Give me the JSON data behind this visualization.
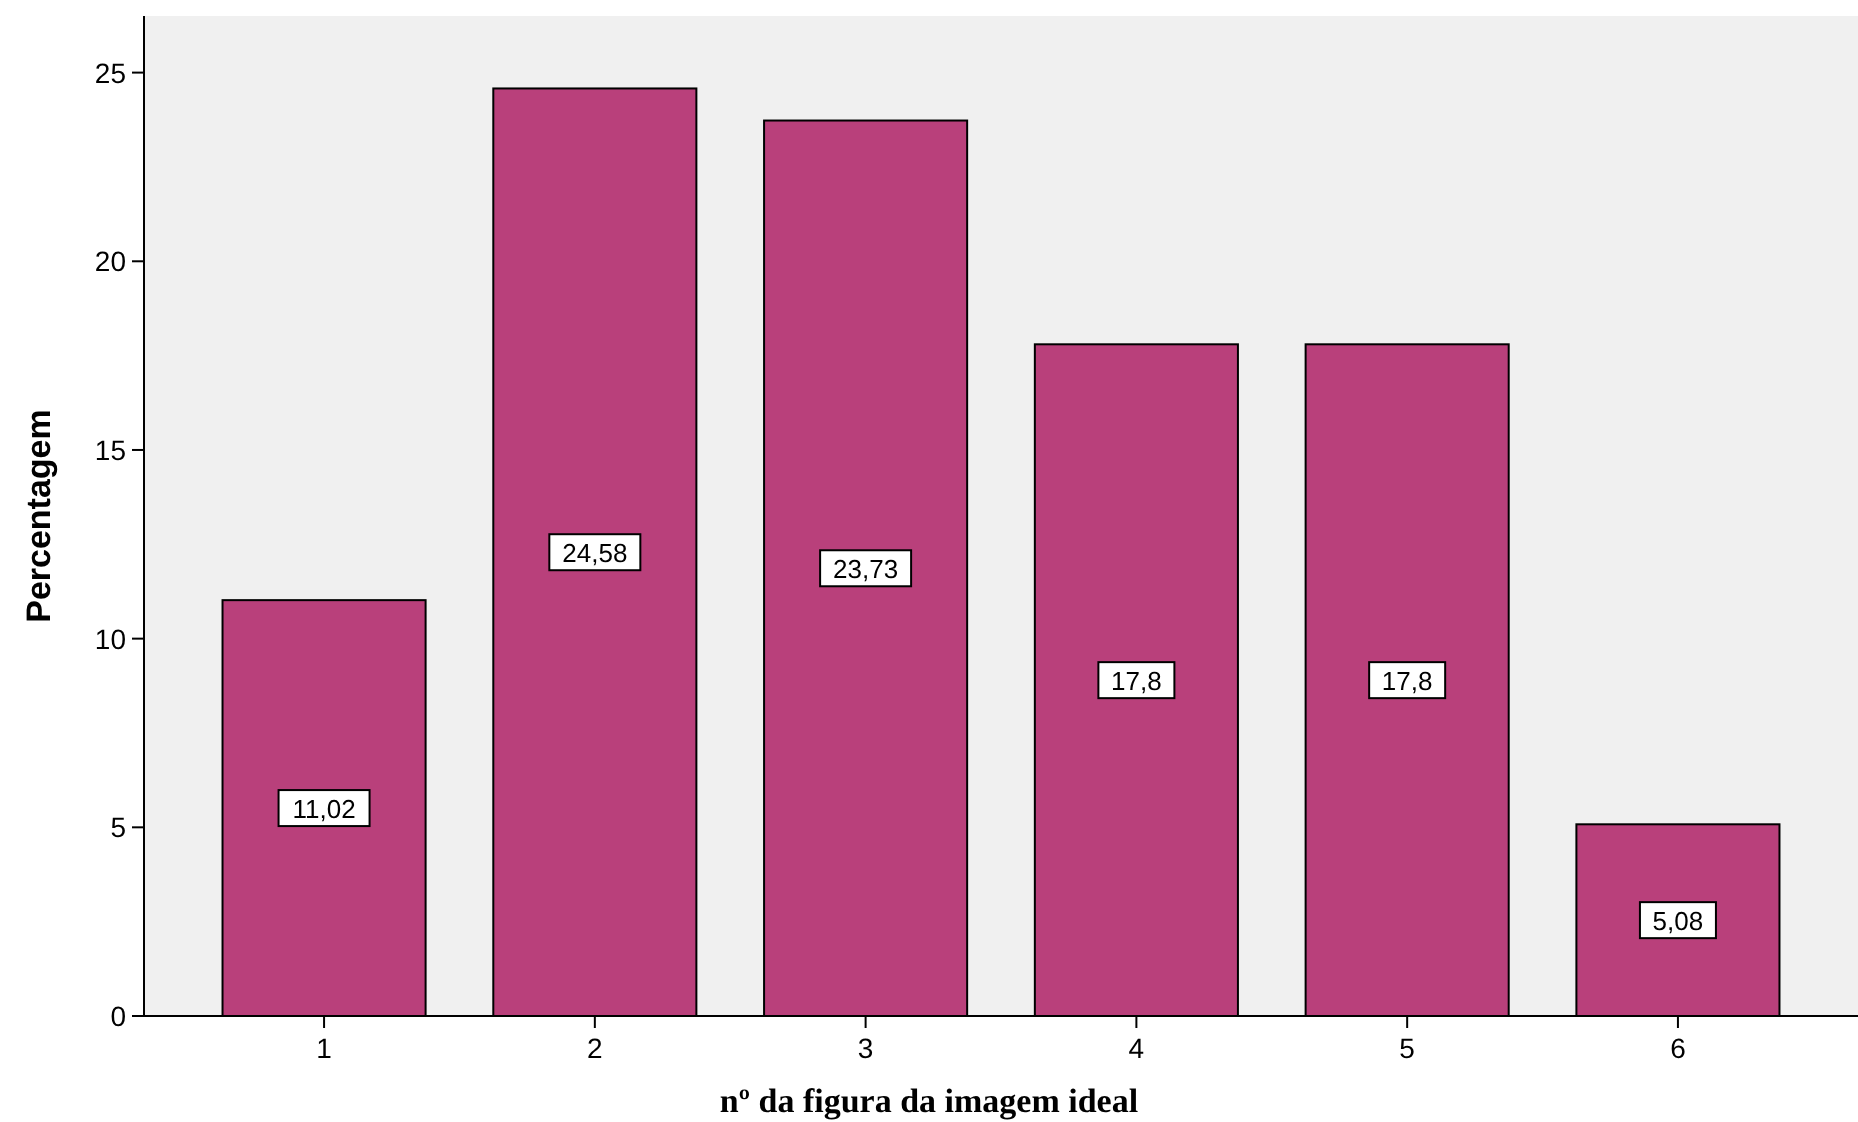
{
  "chart_data": {
    "type": "bar",
    "xlabel": "nº da figura da imagem ideal",
    "ylabel": "Percentagem",
    "categories": [
      "1",
      "2",
      "3",
      "4",
      "5",
      "6"
    ],
    "values": [
      11.02,
      24.58,
      23.73,
      17.8,
      17.8,
      5.08
    ],
    "value_labels": [
      "11,02",
      "24,58",
      "23,73",
      "17,8",
      "17,8",
      "5,08"
    ],
    "color": "#b9407b",
    "ylim": [
      0,
      26.5
    ],
    "yticks": [
      0,
      5,
      10,
      15,
      20,
      25
    ],
    "grid": false
  }
}
